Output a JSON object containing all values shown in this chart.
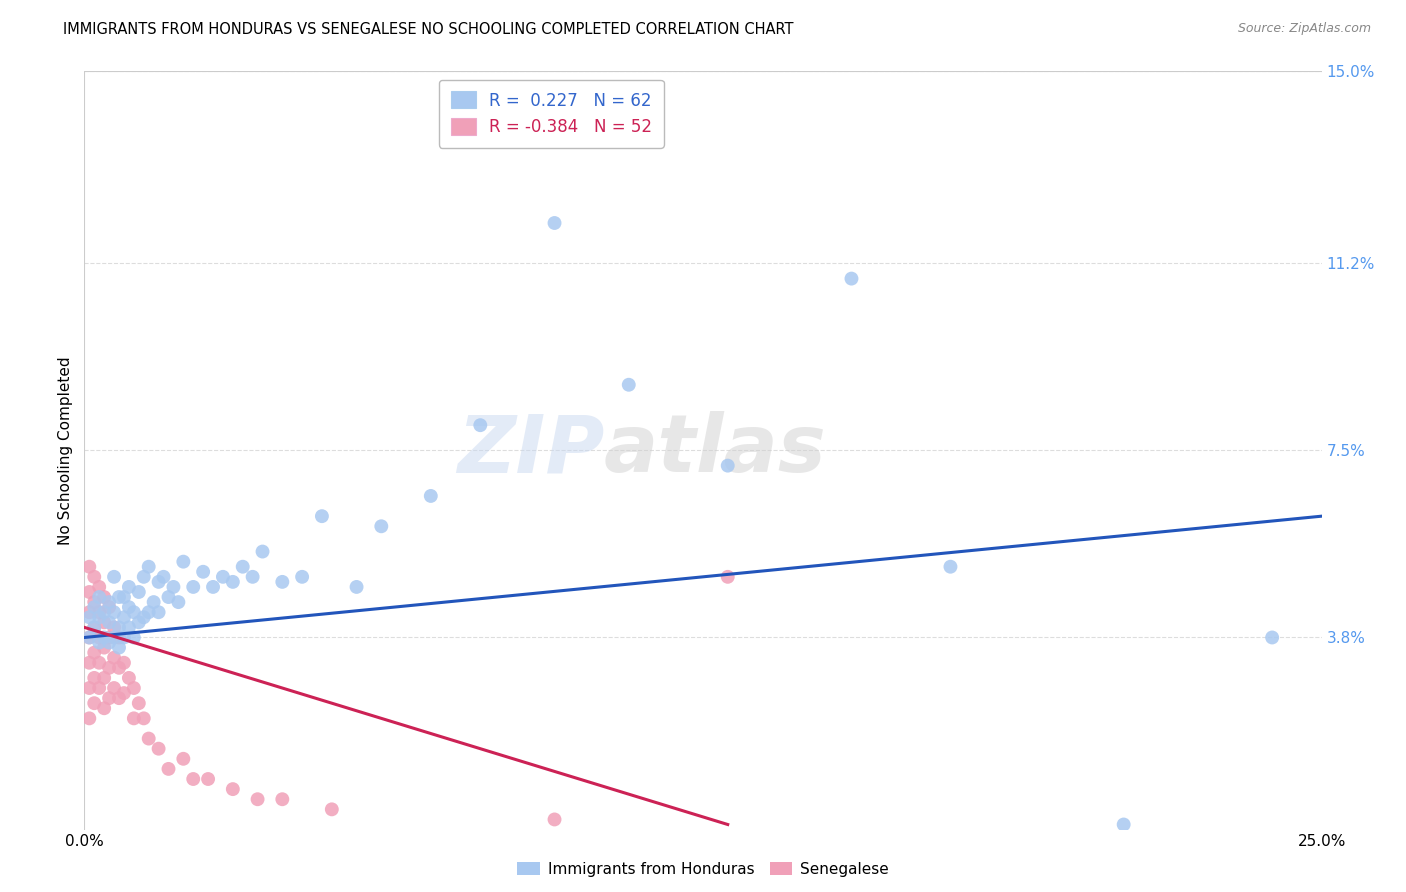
{
  "title": "IMMIGRANTS FROM HONDURAS VS SENEGALESE NO SCHOOLING COMPLETED CORRELATION CHART",
  "source": "Source: ZipAtlas.com",
  "ylabel": "No Schooling Completed",
  "legend_label1": "Immigrants from Honduras",
  "legend_label2": "Senegalese",
  "r1": 0.227,
  "n1": 62,
  "r2": -0.384,
  "n2": 52,
  "xlim": [
    0.0,
    0.25
  ],
  "ylim": [
    0.0,
    0.15
  ],
  "color_blue": "#a8c8f0",
  "color_pink": "#f0a0b8",
  "line_color_blue": "#2255bb",
  "line_color_pink": "#cc2255",
  "watermark_zip": "ZIP",
  "watermark_atlas": "atlas",
  "background_color": "#ffffff",
  "grid_color": "#dddddd",
  "blue_scatter_x": [
    0.001,
    0.001,
    0.002,
    0.002,
    0.003,
    0.003,
    0.003,
    0.004,
    0.004,
    0.005,
    0.005,
    0.005,
    0.006,
    0.006,
    0.006,
    0.007,
    0.007,
    0.007,
    0.008,
    0.008,
    0.008,
    0.009,
    0.009,
    0.009,
    0.01,
    0.01,
    0.011,
    0.011,
    0.012,
    0.012,
    0.013,
    0.013,
    0.014,
    0.015,
    0.015,
    0.016,
    0.017,
    0.018,
    0.019,
    0.02,
    0.022,
    0.024,
    0.026,
    0.028,
    0.03,
    0.032,
    0.034,
    0.036,
    0.04,
    0.044,
    0.048,
    0.055,
    0.06,
    0.07,
    0.08,
    0.095,
    0.11,
    0.13,
    0.155,
    0.175,
    0.21,
    0.24
  ],
  "blue_scatter_y": [
    0.038,
    0.042,
    0.04,
    0.044,
    0.037,
    0.042,
    0.046,
    0.038,
    0.043,
    0.037,
    0.041,
    0.045,
    0.038,
    0.043,
    0.05,
    0.036,
    0.04,
    0.046,
    0.038,
    0.042,
    0.046,
    0.04,
    0.044,
    0.048,
    0.038,
    0.043,
    0.041,
    0.047,
    0.042,
    0.05,
    0.043,
    0.052,
    0.045,
    0.043,
    0.049,
    0.05,
    0.046,
    0.048,
    0.045,
    0.053,
    0.048,
    0.051,
    0.048,
    0.05,
    0.049,
    0.052,
    0.05,
    0.055,
    0.049,
    0.05,
    0.062,
    0.048,
    0.06,
    0.066,
    0.08,
    0.12,
    0.088,
    0.072,
    0.109,
    0.052,
    0.001,
    0.038
  ],
  "pink_scatter_x": [
    0.001,
    0.001,
    0.001,
    0.001,
    0.001,
    0.001,
    0.001,
    0.002,
    0.002,
    0.002,
    0.002,
    0.002,
    0.002,
    0.003,
    0.003,
    0.003,
    0.003,
    0.003,
    0.004,
    0.004,
    0.004,
    0.004,
    0.004,
    0.005,
    0.005,
    0.005,
    0.005,
    0.006,
    0.006,
    0.006,
    0.007,
    0.007,
    0.007,
    0.008,
    0.008,
    0.009,
    0.01,
    0.01,
    0.011,
    0.012,
    0.013,
    0.015,
    0.017,
    0.02,
    0.022,
    0.025,
    0.03,
    0.035,
    0.04,
    0.05,
    0.095,
    0.13
  ],
  "pink_scatter_y": [
    0.052,
    0.047,
    0.043,
    0.038,
    0.033,
    0.028,
    0.022,
    0.05,
    0.045,
    0.04,
    0.035,
    0.03,
    0.025,
    0.048,
    0.043,
    0.038,
    0.033,
    0.028,
    0.046,
    0.041,
    0.036,
    0.03,
    0.024,
    0.044,
    0.038,
    0.032,
    0.026,
    0.04,
    0.034,
    0.028,
    0.038,
    0.032,
    0.026,
    0.033,
    0.027,
    0.03,
    0.028,
    0.022,
    0.025,
    0.022,
    0.018,
    0.016,
    0.012,
    0.014,
    0.01,
    0.01,
    0.008,
    0.006,
    0.006,
    0.004,
    0.002,
    0.05
  ],
  "blue_trend_x": [
    0.0,
    0.25
  ],
  "blue_trend_y": [
    0.038,
    0.062
  ],
  "pink_trend_x": [
    0.0,
    0.13
  ],
  "pink_trend_y": [
    0.04,
    0.001
  ]
}
